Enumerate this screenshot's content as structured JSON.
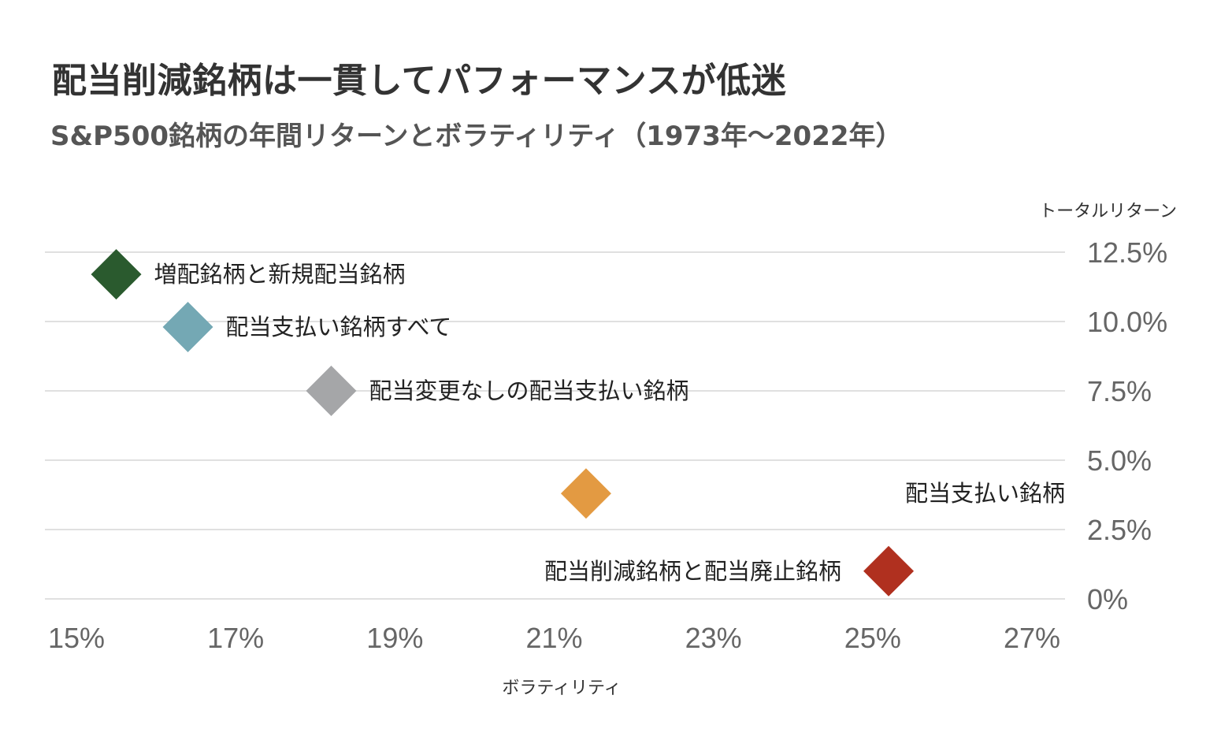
{
  "title": "配当削減銘柄は一貫してパフォーマンスが低迷",
  "subtitle": "S&P500銘柄の年間リターンとボラティリティ（1973年〜2022年）",
  "chart_data": {
    "type": "scatter",
    "title": "配当削減銘柄は一貫してパフォーマンスが低迷",
    "subtitle": "S&P500銘柄の年間リターンとボラティリティ（1973年〜2022年）",
    "xlabel": "ボラティリティ",
    "ylabel": "トータルリターン",
    "xlim": [
      15,
      27
    ],
    "ylim": [
      0,
      12.5
    ],
    "x_ticks": [
      15,
      17,
      19,
      21,
      23,
      25,
      27
    ],
    "x_tick_labels": [
      "15%",
      "17%",
      "19%",
      "21%",
      "23%",
      "25%",
      "27%"
    ],
    "y_ticks": [
      0,
      2.5,
      5,
      7.5,
      10,
      12.5
    ],
    "y_tick_labels": [
      "0%",
      "2.5%",
      "5.0%",
      "7.5%",
      "10.0%",
      "12.5%"
    ],
    "grid": true,
    "marker": "diamond",
    "points": [
      {
        "label": "増配銘柄と新規配当銘柄",
        "x": 15.5,
        "y": 11.7,
        "color": "#2a5a2e",
        "label_side": "right"
      },
      {
        "label": "配当支払い銘柄すべて",
        "x": 16.4,
        "y": 9.8,
        "color": "#74a8b4",
        "label_side": "right"
      },
      {
        "label": "配当変更なしの配当支払い銘柄",
        "x": 18.2,
        "y": 7.5,
        "color": "#a5a6a8",
        "label_side": "right"
      },
      {
        "label": "配当支払い銘柄",
        "x": 21.4,
        "y": 3.8,
        "color": "#e39a42",
        "label_side": "far-right"
      },
      {
        "label": "配当削減銘柄と配当廃止銘柄",
        "x": 25.2,
        "y": 1.0,
        "color": "#b0301f",
        "label_side": "left"
      }
    ]
  }
}
